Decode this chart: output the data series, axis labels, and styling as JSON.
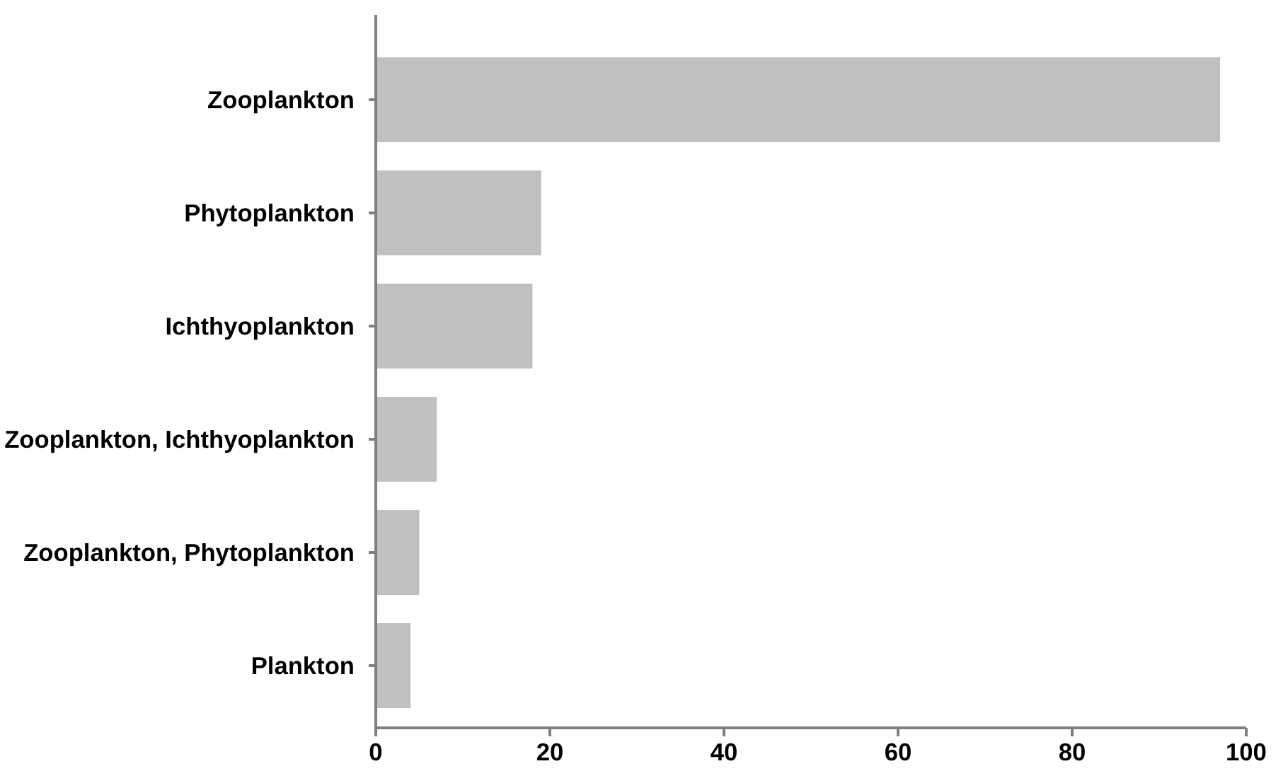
{
  "chart_data": {
    "type": "bar",
    "orientation": "horizontal",
    "categories": [
      "Zooplankton",
      "Phytoplankton",
      "Ichthyoplankton",
      "Zooplankton, Ichthyoplankton",
      "Zooplankton, Phytoplankton",
      "Plankton"
    ],
    "values": [
      97,
      19,
      18,
      7,
      5,
      4
    ],
    "color": "#c0c0c0",
    "xlim": [
      0,
      100
    ],
    "xticks": [
      0,
      20,
      40,
      60,
      80,
      100
    ],
    "grid": false
  }
}
